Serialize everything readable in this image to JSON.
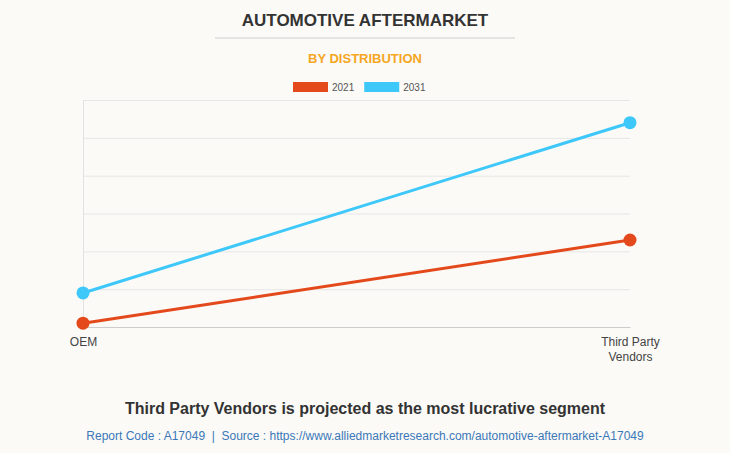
{
  "chart_data": {
    "type": "line",
    "title": "AUTOMOTIVE AFTERMARKET",
    "subtitle": "BY DISTRIBUTION",
    "categories": [
      "OEM",
      "Third Party Vendors"
    ],
    "series": [
      {
        "name": "2021",
        "color": "#e4491c",
        "values": [
          0.1,
          2.3
        ],
        "marker": "circle"
      },
      {
        "name": "2031",
        "color": "#3ec8fa",
        "values": [
          0.9,
          5.4
        ],
        "marker": "circle"
      }
    ],
    "ylim": [
      0,
      6
    ],
    "yticks": [
      0,
      1,
      2,
      3,
      4,
      5,
      6
    ],
    "grid": true,
    "legend": "top",
    "tick_labels": "x",
    "annotations": [
      "Third Party Vendors is projected as the most lucrative segment",
      "Report Code : A17049  |  Source : https://www.alliedmarketresearch.com/automotive-aftermarket-A17049"
    ]
  }
}
